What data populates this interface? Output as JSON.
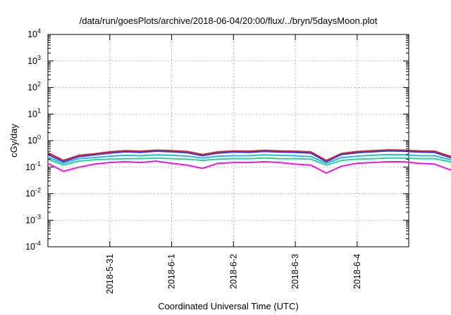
{
  "chart_data": {
    "type": "line",
    "title": "/data/run/goesPlots/archive/2018-06-04/20:00/flux/../bryn/5daysMoon.plot",
    "xlabel": "Coordinated Universal Time (UTC)",
    "ylabel": "cGy/day",
    "yscale": "log",
    "ylim": [
      0.0001,
      10000
    ],
    "y_ticks": [
      {
        "base": "10",
        "exp": "-4"
      },
      {
        "base": "10",
        "exp": "-3"
      },
      {
        "base": "10",
        "exp": "-2"
      },
      {
        "base": "10",
        "exp": "-1"
      },
      {
        "base": "10",
        "exp": "0"
      },
      {
        "base": "10",
        "exp": "1"
      },
      {
        "base": "10",
        "exp": "2"
      },
      {
        "base": "10",
        "exp": "3"
      },
      {
        "base": "10",
        "exp": "4"
      }
    ],
    "xlim": [
      "2018-05-30 00:00",
      "2018-06-04 20:00"
    ],
    "x_ticks": [
      "2018-5-31",
      "2018-6-1",
      "2018-6-2",
      "2018-6-3",
      "2018-6-4"
    ],
    "grid": true,
    "x_start": "2018-05-30 00:00",
    "x_step_hours": 6,
    "series": [
      {
        "color": "#e8202c",
        "values": [
          0.35,
          0.18,
          0.28,
          0.32,
          0.38,
          0.42,
          0.4,
          0.44,
          0.42,
          0.39,
          0.3,
          0.38,
          0.41,
          0.4,
          0.43,
          0.41,
          0.4,
          0.38,
          0.18,
          0.33,
          0.39,
          0.42,
          0.45,
          0.44,
          0.41,
          0.4,
          0.26,
          0.37,
          0.4,
          0.41,
          0.43,
          0.4,
          0.34,
          0.3,
          0.16,
          0.24,
          0.38,
          0.41,
          0.42,
          0.4,
          0.38,
          0.16,
          0.33,
          0.39,
          0.41,
          0.43,
          0.42,
          0.4,
          0.34,
          0.18,
          0.32,
          0.38,
          0.41,
          0.45,
          0.47,
          0.44,
          0.42,
          0.4
        ]
      },
      {
        "color": "#2c3fd8",
        "values": [
          0.3,
          0.16,
          0.25,
          0.29,
          0.34,
          0.38,
          0.36,
          0.4,
          0.38,
          0.35,
          0.27,
          0.34,
          0.37,
          0.36,
          0.39,
          0.37,
          0.36,
          0.34,
          0.16,
          0.3,
          0.35,
          0.38,
          0.41,
          0.4,
          0.37,
          0.36,
          0.23,
          0.33,
          0.36,
          0.37,
          0.39,
          0.36,
          0.31,
          0.27,
          0.14,
          0.21,
          0.34,
          0.37,
          0.38,
          0.36,
          0.34,
          0.14,
          0.3,
          0.35,
          0.37,
          0.39,
          0.38,
          0.36,
          0.31,
          0.16,
          0.29,
          0.34,
          0.37,
          0.41,
          0.43,
          0.4,
          0.38,
          0.36
        ]
      },
      {
        "color": "#22b8e0",
        "values": [
          0.24,
          0.14,
          0.21,
          0.23,
          0.26,
          0.28,
          0.27,
          0.29,
          0.28,
          0.26,
          0.22,
          0.26,
          0.27,
          0.27,
          0.29,
          0.28,
          0.27,
          0.25,
          0.14,
          0.23,
          0.26,
          0.28,
          0.3,
          0.29,
          0.27,
          0.27,
          0.19,
          0.25,
          0.27,
          0.27,
          0.29,
          0.27,
          0.24,
          0.22,
          0.12,
          0.18,
          0.26,
          0.27,
          0.28,
          0.27,
          0.25,
          0.12,
          0.23,
          0.26,
          0.27,
          0.29,
          0.28,
          0.27,
          0.24,
          0.14,
          0.22,
          0.25,
          0.27,
          0.3,
          0.31,
          0.29,
          0.28,
          0.27
        ]
      },
      {
        "color": "#2fd090",
        "values": [
          0.2,
          0.12,
          0.17,
          0.19,
          0.2,
          0.21,
          0.21,
          0.22,
          0.21,
          0.2,
          0.18,
          0.2,
          0.21,
          0.21,
          0.22,
          0.21,
          0.21,
          0.2,
          0.12,
          0.18,
          0.2,
          0.21,
          0.22,
          0.22,
          0.21,
          0.21,
          0.16,
          0.2,
          0.21,
          0.21,
          0.22,
          0.21,
          0.19,
          0.18,
          0.1,
          0.15,
          0.2,
          0.21,
          0.21,
          0.21,
          0.2,
          0.1,
          0.18,
          0.2,
          0.21,
          0.22,
          0.21,
          0.21,
          0.19,
          0.12,
          0.18,
          0.2,
          0.21,
          0.22,
          0.23,
          0.22,
          0.21,
          0.21
        ]
      },
      {
        "color": "#f016e0",
        "values": [
          0.14,
          0.07,
          0.1,
          0.13,
          0.15,
          0.16,
          0.15,
          0.17,
          0.14,
          0.12,
          0.09,
          0.14,
          0.15,
          0.15,
          0.16,
          0.15,
          0.13,
          0.12,
          0.06,
          0.11,
          0.14,
          0.15,
          0.16,
          0.16,
          0.14,
          0.13,
          0.08,
          0.13,
          0.15,
          0.15,
          0.16,
          0.14,
          0.11,
          0.09,
          0.045,
          0.08,
          0.13,
          0.15,
          0.15,
          0.14,
          0.12,
          0.05,
          0.11,
          0.14,
          0.15,
          0.16,
          0.15,
          0.14,
          0.1,
          0.06,
          0.11,
          0.13,
          0.15,
          0.16,
          0.17,
          0.16,
          0.15,
          0.14
        ]
      }
    ]
  }
}
